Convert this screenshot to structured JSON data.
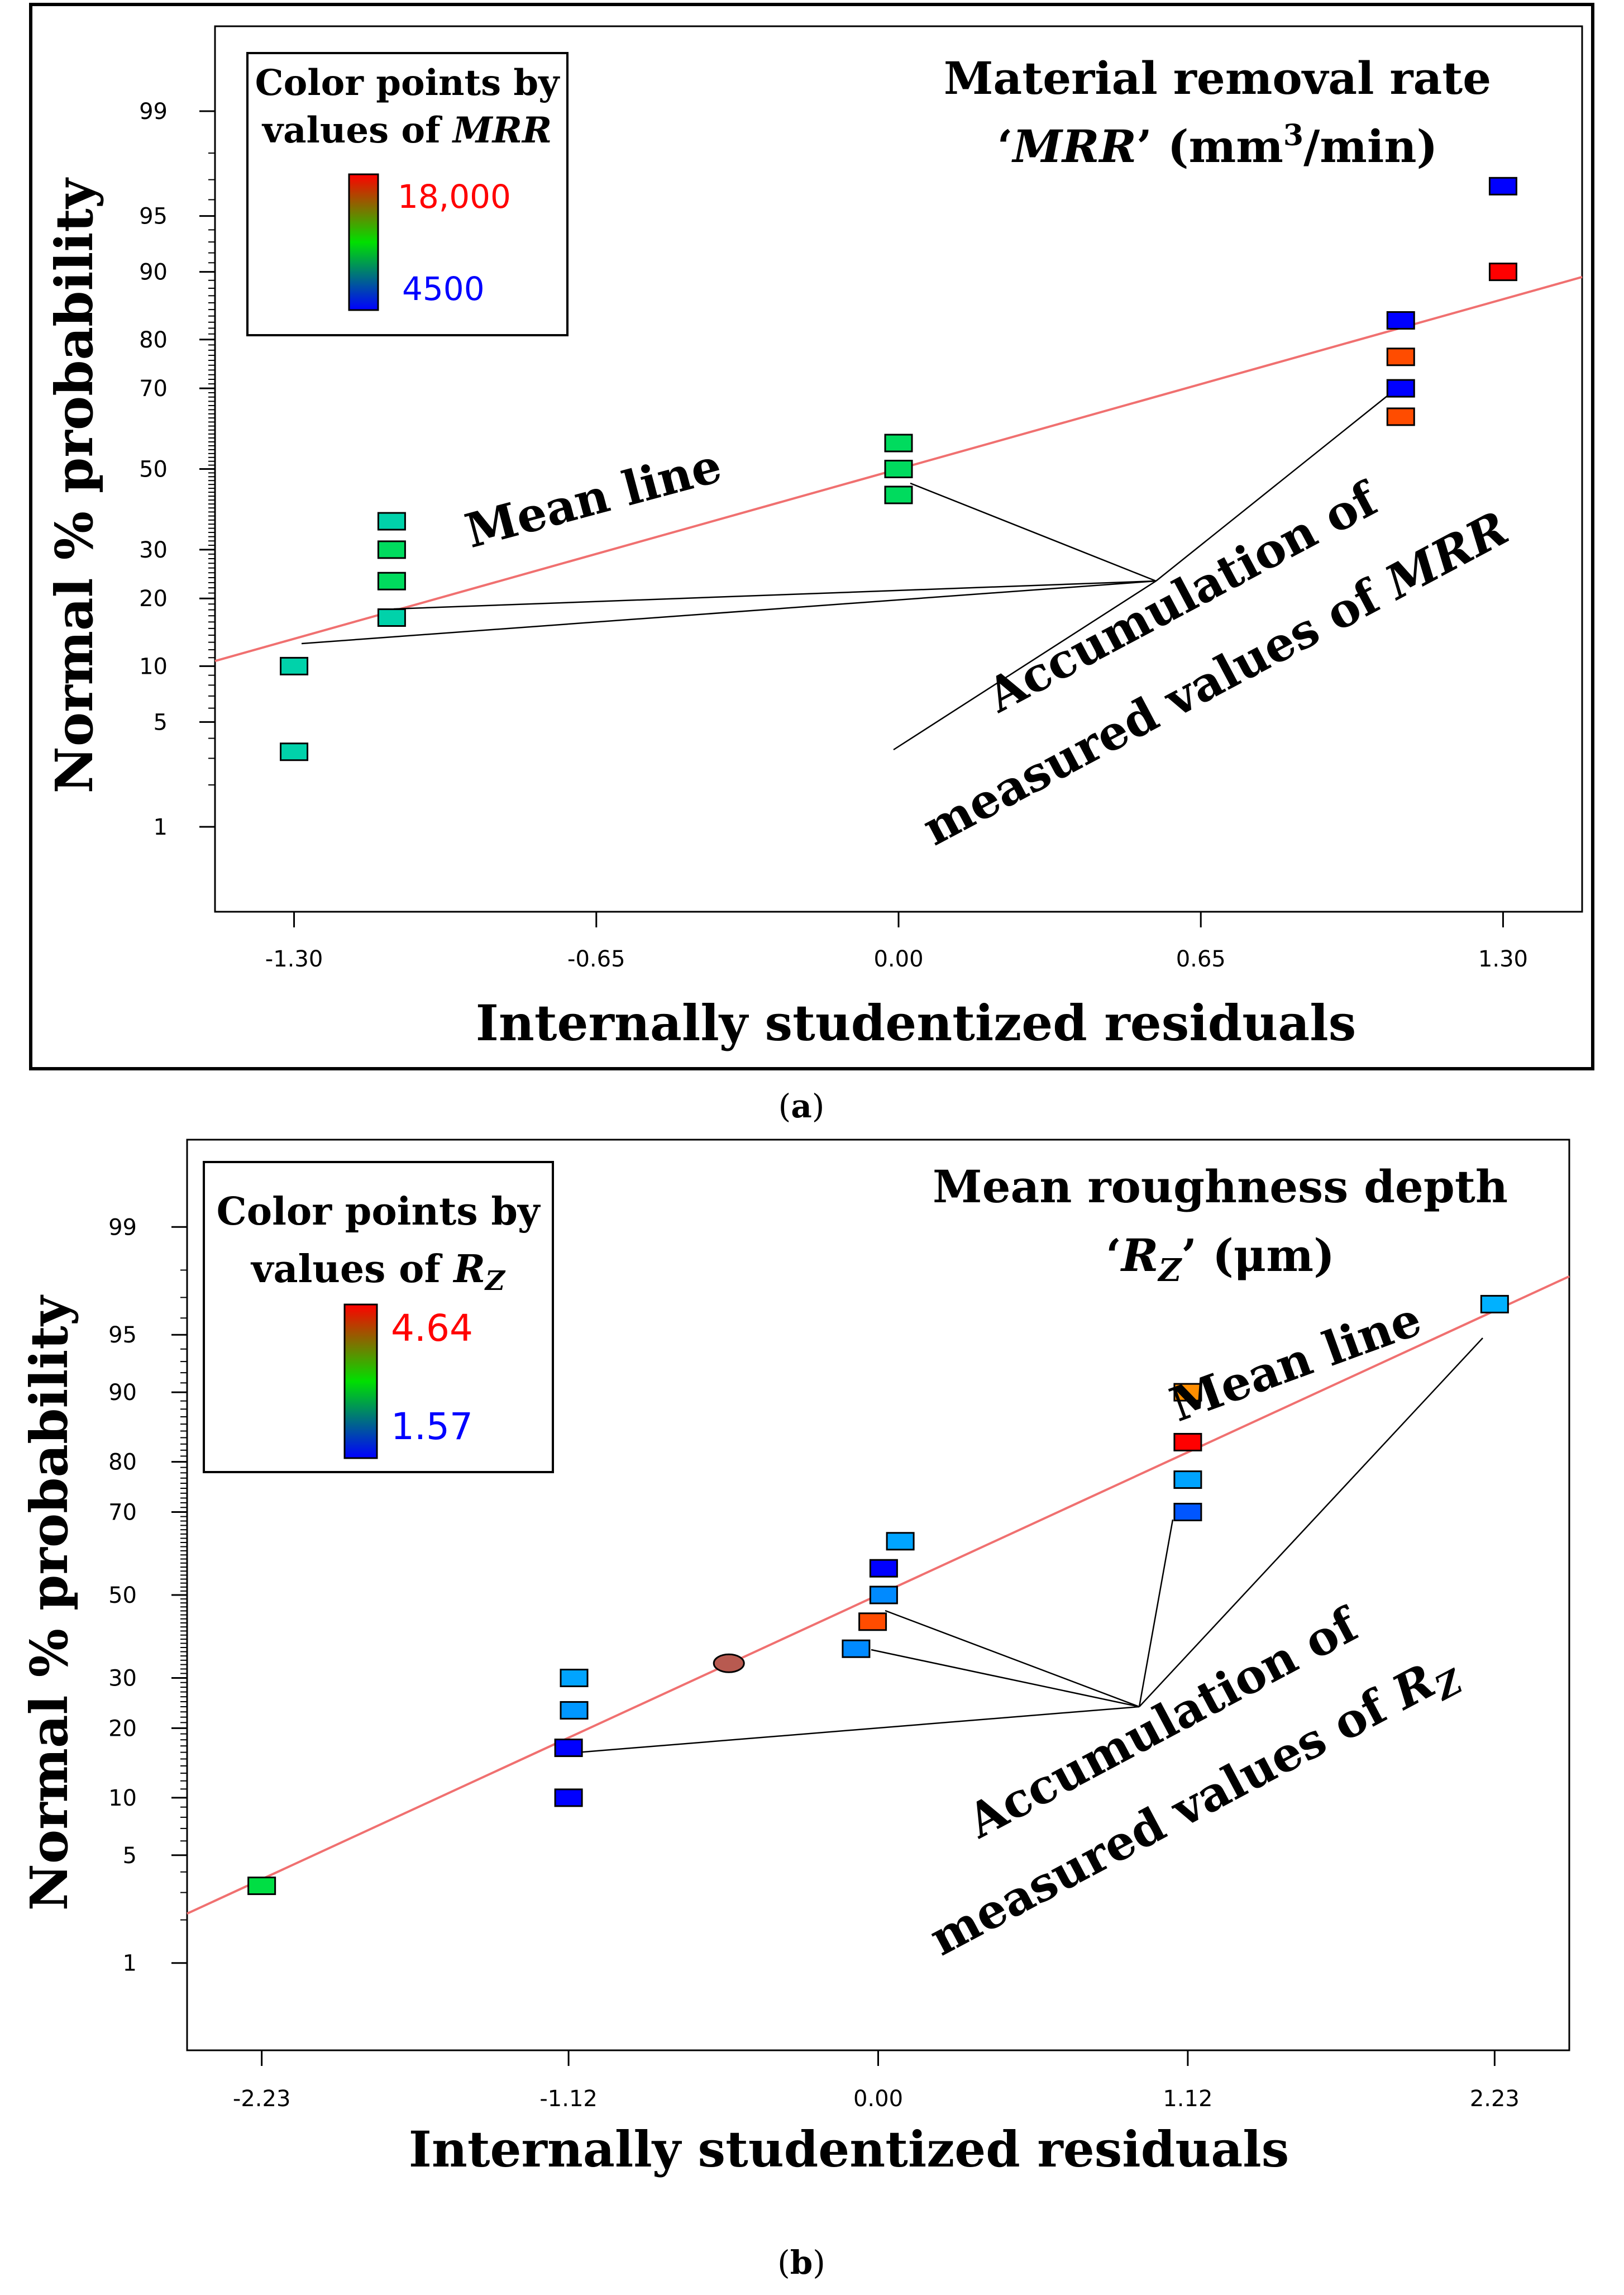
{
  "panels": [
    {
      "id": "a",
      "caption_paren_open": "(",
      "caption_letter": "a",
      "caption_paren_close": ")",
      "ylabel": "Normal % probability",
      "xlabel": "Internally studentized residuals",
      "title_line1": "Material removal rate",
      "title_q_open": "‘",
      "title_var": "MRR",
      "title_q_close": "’",
      "title_unit_a": " (mm",
      "title_unit_sup": "3",
      "title_unit_b": "/min)",
      "legend_line1": "Color points by",
      "legend_line2_text": "values of ",
      "legend_line2_var": "MRR",
      "legend_sub": "",
      "legend_high": "18,000",
      "legend_low": "4500",
      "mean_line_label": "Mean line",
      "accum_line1": "Accumulation of",
      "accum_line2_text": "measured values of ",
      "accum_line2_var": "MRR",
      "accum_sub": ""
    },
    {
      "id": "b",
      "caption_paren_open": "(",
      "caption_letter": "b",
      "caption_paren_close": ")",
      "ylabel": "Normal % probability",
      "xlabel": "Internally studentized residuals",
      "title_line1": "Mean roughness depth",
      "title_q_open": "‘",
      "title_var": "R",
      "title_sub": "Z",
      "title_q_close": "’",
      "title_unit": " (μm)",
      "legend_line1": "Color points by",
      "legend_line2_text": "values of ",
      "legend_line2_var": "R",
      "legend_sub": "Z",
      "legend_high": "4.64",
      "legend_low": "1.57",
      "mean_line_label": "Mean line",
      "accum_line1": "Accumulation of",
      "accum_line2_text": "measured values of ",
      "accum_line2_var": "R",
      "accum_sub": "Z"
    }
  ],
  "chart_data": [
    {
      "type": "scatter",
      "title": "Material removal rate ‘MRR’ (mm3/min)",
      "xlabel": "Internally studentized residuals",
      "ylabel": "Normal % probability",
      "x_ticks": [
        "-1.30",
        "-0.65",
        "0.00",
        "0.65",
        "1.30"
      ],
      "x_tick_values": [
        -1.3,
        -0.65,
        0.0,
        0.65,
        1.3
      ],
      "xlim": [
        -1.47,
        1.47
      ],
      "y_ticks": [
        "1",
        "5",
        "10",
        "20",
        "30",
        "50",
        "70",
        "80",
        "90",
        "95",
        "99"
      ],
      "y_tick_values": [
        1,
        5,
        10,
        20,
        30,
        50,
        70,
        80,
        90,
        95,
        99
      ],
      "ylim_probability": [
        0.2,
        99.8
      ],
      "color_scale": {
        "low": 4500,
        "high": 18000
      },
      "mean_line": {
        "from": [
          -1.47,
          10.6
        ],
        "to": [
          1.47,
          89.4
        ]
      },
      "points": [
        {
          "x": -1.3,
          "y": 3.3,
          "value": 9000
        },
        {
          "x": -1.3,
          "y": 10,
          "value": 9000
        },
        {
          "x": -1.09,
          "y": 16.7,
          "value": 9000
        },
        {
          "x": -1.09,
          "y": 23.3,
          "value": 10000
        },
        {
          "x": -1.09,
          "y": 30,
          "value": 10000
        },
        {
          "x": -1.09,
          "y": 36.7,
          "value": 9000
        },
        {
          "x": 0.0,
          "y": 43.3,
          "value": 10000
        },
        {
          "x": 0.0,
          "y": 50,
          "value": 10000
        },
        {
          "x": 0.0,
          "y": 56.7,
          "value": 10000
        },
        {
          "x": 1.08,
          "y": 63.3,
          "value": 16500
        },
        {
          "x": 1.08,
          "y": 70,
          "value": 4500
        },
        {
          "x": 1.08,
          "y": 76.7,
          "value": 16500
        },
        {
          "x": 1.08,
          "y": 83.3,
          "value": 4500
        },
        {
          "x": 1.3,
          "y": 90,
          "value": 18000
        },
        {
          "x": 1.3,
          "y": 96.7,
          "value": 4500
        }
      ]
    },
    {
      "type": "scatter",
      "title": "Mean roughness depth ‘RZ’ (μm)",
      "xlabel": "Internally studentized residuals",
      "ylabel": "Normal % probability",
      "x_ticks": [
        "-2.23",
        "-1.12",
        "0.00",
        "1.12",
        "2.23"
      ],
      "x_tick_values": [
        -2.23,
        -1.12,
        0.0,
        1.12,
        2.23
      ],
      "xlim": [
        -2.5,
        2.5
      ],
      "y_ticks": [
        "1",
        "5",
        "10",
        "20",
        "30",
        "50",
        "70",
        "80",
        "90",
        "95",
        "99"
      ],
      "y_tick_values": [
        1,
        5,
        10,
        20,
        30,
        50,
        70,
        80,
        90,
        95,
        99
      ],
      "ylim_probability": [
        0.2,
        99.8
      ],
      "color_scale": {
        "low": 1.57,
        "high": 4.64
      },
      "mean_line": {
        "from": [
          -2.5,
          2.2
        ],
        "to": [
          2.5,
          97.8
        ]
      },
      "points": [
        {
          "x": -2.23,
          "y": 3.3,
          "value": 2.9
        },
        {
          "x": -1.12,
          "y": 10,
          "value": 1.57
        },
        {
          "x": -1.12,
          "y": 16.7,
          "value": 1.57
        },
        {
          "x": -1.1,
          "y": 23.3,
          "value": 2.15
        },
        {
          "x": -1.1,
          "y": 30,
          "value": 2.2
        },
        {
          "x": -0.54,
          "y": 33.3,
          "value": 4.4,
          "shape": "ellipse"
        },
        {
          "x": -0.08,
          "y": 36.7,
          "value": 2.1
        },
        {
          "x": -0.02,
          "y": 43.3,
          "value": 4.3
        },
        {
          "x": 0.02,
          "y": 50,
          "value": 2.1
        },
        {
          "x": 0.02,
          "y": 56.7,
          "value": 1.57
        },
        {
          "x": 0.08,
          "y": 63.3,
          "value": 2.2
        },
        {
          "x": 1.12,
          "y": 70,
          "value": 1.9
        },
        {
          "x": 1.12,
          "y": 76.7,
          "value": 2.2
        },
        {
          "x": 1.12,
          "y": 83.3,
          "value": 4.64
        },
        {
          "x": 1.12,
          "y": 90,
          "value": 4.0
        },
        {
          "x": 2.23,
          "y": 96.7,
          "value": 2.25
        }
      ]
    }
  ]
}
